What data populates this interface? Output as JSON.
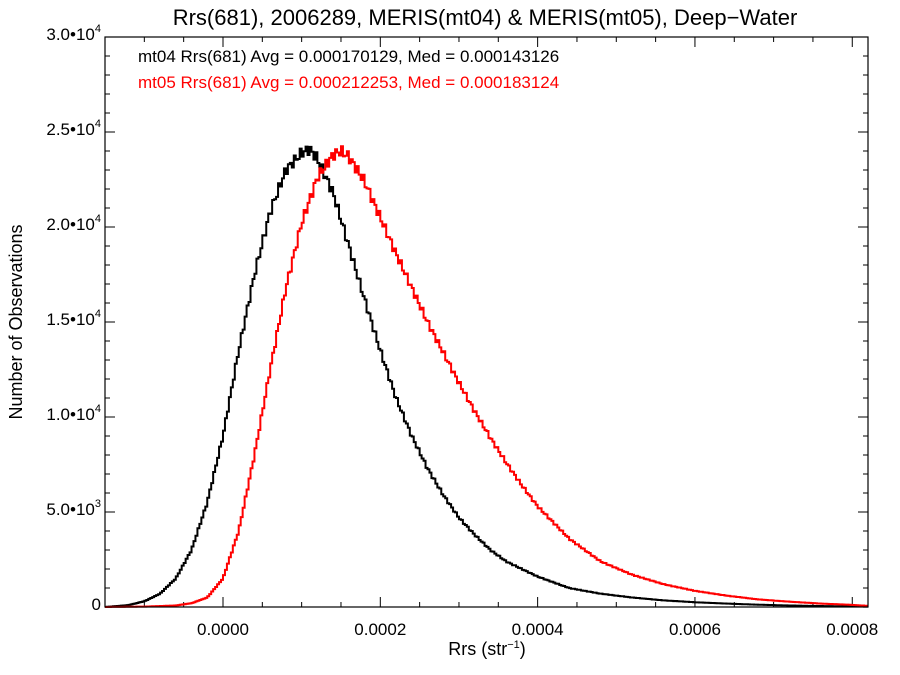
{
  "chart_data": {
    "type": "line",
    "title": "Rrs(681), 2006289, MERIS(mt04) & MERIS(mt05), Deep−Water",
    "xlabel": {
      "base": "Rrs (str",
      "sup": "−1",
      "close": ")"
    },
    "ylabel": "Number of Observations",
    "xlim": [
      -0.00015,
      0.00082
    ],
    "ylim": [
      0,
      30000
    ],
    "x_ticks": [
      {
        "value": 0.0,
        "label": "0.0000"
      },
      {
        "value": 0.0002,
        "label": "0.0002"
      },
      {
        "value": 0.0004,
        "label": "0.0004"
      },
      {
        "value": 0.0006,
        "label": "0.0006"
      },
      {
        "value": 0.0008,
        "label": "0.0008"
      }
    ],
    "y_ticks": [
      {
        "value": 0,
        "mant": "0",
        "exp": ""
      },
      {
        "value": 5000,
        "mant": "5.0•10",
        "exp": "3"
      },
      {
        "value": 10000,
        "mant": "1.0•10",
        "exp": "4"
      },
      {
        "value": 15000,
        "mant": "1.5•10",
        "exp": "4"
      },
      {
        "value": 20000,
        "mant": "2.0•10",
        "exp": "4"
      },
      {
        "value": 25000,
        "mant": "2.5•10",
        "exp": "4"
      },
      {
        "value": 30000,
        "mant": "3.0•10",
        "exp": "4"
      }
    ],
    "annotations": [
      {
        "text": "mt04 Rrs(681) Avg = 0.000170129, Med = 0.000143126",
        "color": "#000000"
      },
      {
        "text": "mt05 Rrs(681) Avg = 0.000212253, Med = 0.000183124",
        "color": "#ff0000"
      }
    ],
    "series": [
      {
        "color": "#000000",
        "step": "histogram",
        "x": [
          -0.00015,
          -0.00012,
          -0.0001,
          -8e-05,
          -6e-05,
          -4e-05,
          -2e-05,
          0.0,
          2e-05,
          4e-05,
          6e-05,
          8e-05,
          0.0001,
          0.00011,
          0.00012,
          0.00014,
          0.00016,
          0.00018,
          0.0002,
          0.00022,
          0.00024,
          0.00026,
          0.00028,
          0.0003,
          0.00032,
          0.00034,
          0.00036,
          0.0004,
          0.00044,
          0.00048,
          0.00052,
          0.00056,
          0.0006,
          0.00064,
          0.00068,
          0.00072,
          0.00076,
          0.0008,
          0.00082
        ],
        "y": [
          0,
          100,
          300,
          700,
          1500,
          3000,
          5500,
          9000,
          13500,
          17500,
          20800,
          23000,
          23900,
          24100,
          23600,
          21800,
          19000,
          16200,
          13500,
          11000,
          9000,
          7300,
          5900,
          4700,
          3800,
          3000,
          2400,
          1600,
          1000,
          700,
          500,
          350,
          250,
          180,
          120,
          80,
          50,
          30,
          20
        ]
      },
      {
        "color": "#ff0000",
        "step": "histogram",
        "x": [
          -0.00015,
          -0.0001,
          -6e-05,
          -4e-05,
          -2e-05,
          0.0,
          2e-05,
          4e-05,
          6e-05,
          8e-05,
          0.0001,
          0.00012,
          0.00014,
          0.00015,
          0.00016,
          0.00018,
          0.0002,
          0.00022,
          0.00024,
          0.00026,
          0.00028,
          0.0003,
          0.00032,
          0.00034,
          0.00036,
          0.00038,
          0.0004,
          0.00044,
          0.00048,
          0.00052,
          0.00056,
          0.0006,
          0.00064,
          0.00068,
          0.00072,
          0.00076,
          0.0008,
          0.00082
        ],
        "y": [
          0,
          20,
          80,
          200,
          500,
          1500,
          4000,
          8000,
          12500,
          16800,
          20200,
          22600,
          23800,
          24000,
          23700,
          22400,
          20500,
          18600,
          16800,
          15000,
          13400,
          11800,
          10300,
          8900,
          7600,
          6400,
          5300,
          3600,
          2400,
          1700,
          1200,
          850,
          600,
          400,
          280,
          180,
          110,
          60
        ]
      }
    ]
  }
}
